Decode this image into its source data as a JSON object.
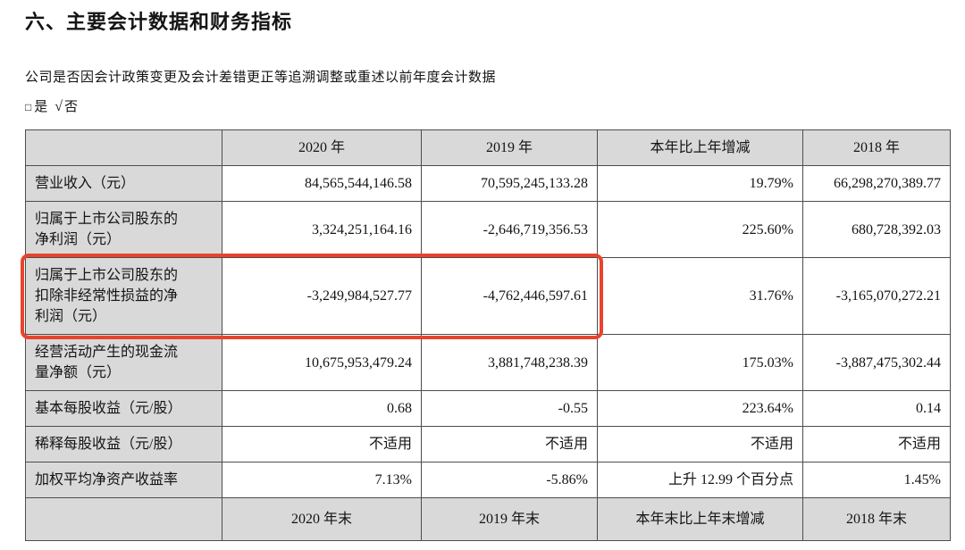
{
  "page": {
    "title": "六、主要会计数据和财务指标",
    "restatement_question": "公司是否因会计政策变更及会计差错更正等追溯调整或重述以前年度会计数据",
    "checkbox_line": {
      "unchecked_symbol": "□",
      "yes_label": "是",
      "checked_symbol": "√",
      "no_label": "否"
    }
  },
  "table": {
    "header": [
      "",
      "2020 年",
      "2019 年",
      "本年比上年增减",
      "2018 年"
    ],
    "rows": [
      {
        "label": "营业收入（元）",
        "values": [
          "84,565,544,146.58",
          "70,595,245,133.28",
          "19.79%",
          "66,298,270,389.77"
        ],
        "highlighted": false
      },
      {
        "label": "归属于上市公司股东的净利润（元）",
        "values": [
          "3,324,251,164.16",
          "-2,646,719,356.53",
          "225.60%",
          "680,728,392.03"
        ],
        "highlighted": false
      },
      {
        "label": "归属于上市公司股东的扣除非经常性损益的净利润（元）",
        "values": [
          "-3,249,984,527.77",
          "-4,762,446,597.61",
          "31.76%",
          "-3,165,070,272.21"
        ],
        "highlighted": true
      },
      {
        "label": "经营活动产生的现金流量净额（元）",
        "values": [
          "10,675,953,479.24",
          "3,881,748,238.39",
          "175.03%",
          "-3,887,475,302.44"
        ],
        "highlighted": false
      },
      {
        "label": "基本每股收益（元/股）",
        "values": [
          "0.68",
          "-0.55",
          "223.64%",
          "0.14"
        ],
        "highlighted": false
      },
      {
        "label": "稀释每股收益（元/股）",
        "values": [
          "不适用",
          "不适用",
          "不适用",
          "不适用"
        ],
        "highlighted": false
      },
      {
        "label": "加权平均净资产收益率",
        "values": [
          "7.13%",
          "-5.86%",
          "上升 12.99 个百分点",
          "1.45%"
        ],
        "highlighted": false
      }
    ],
    "footer": [
      "",
      "2020 年末",
      "2019 年末",
      "本年末比上年末增减",
      "2018 年末"
    ]
  },
  "colors": {
    "header_bg": "#d9d9d9",
    "table_border": "#4d4d4d",
    "highlight_border": "#e8432d"
  }
}
